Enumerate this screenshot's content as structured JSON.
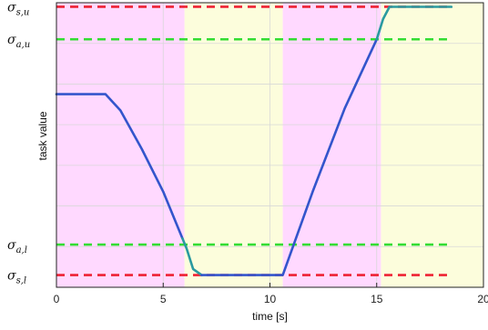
{
  "chart_data": {
    "type": "line",
    "xlabel": "time [s]",
    "ylabel": "task value",
    "xlim": [
      0,
      20
    ],
    "ylim": [
      0,
      7
    ],
    "x_ticks": [
      0,
      5,
      10,
      15,
      20
    ],
    "x_tick_labels": [
      "0",
      "5",
      "10",
      "15",
      "20"
    ],
    "y_gridlines": [
      1,
      2,
      3,
      4,
      5,
      6
    ],
    "grid": true,
    "background_bands": [
      {
        "x_from": 0,
        "x_to": 6.0,
        "color": "#ffd9ff"
      },
      {
        "x_from": 6.0,
        "x_to": 10.6,
        "color": "#fcfddc"
      },
      {
        "x_from": 10.6,
        "x_to": 15.2,
        "color": "#ffd9ff"
      },
      {
        "x_from": 15.2,
        "x_to": 20,
        "color": "#fcfddc"
      }
    ],
    "thresholds": [
      {
        "label_main": "σ",
        "label_sub": "s,u",
        "value": 6.9,
        "color": "#ee2233",
        "style": "dashed"
      },
      {
        "label_main": "σ",
        "label_sub": "a,u",
        "value": 6.1,
        "color": "#33dd33",
        "style": "dashed"
      },
      {
        "label_main": "σ",
        "label_sub": "a,l",
        "value": 1.05,
        "color": "#33dd33",
        "style": "dashed"
      },
      {
        "label_main": "σ",
        "label_sub": "s,l",
        "value": 0.3,
        "color": "#ee2233",
        "style": "dashed"
      }
    ],
    "series": [
      {
        "color": "#3355cc",
        "x": [
          0,
          2.3,
          3.0,
          4.0,
          5.0,
          5.9
        ],
        "y": [
          4.75,
          4.75,
          4.35,
          3.4,
          2.35,
          1.2
        ]
      },
      {
        "color": "#2a9aa0",
        "x": [
          5.9,
          6.1,
          6.4,
          6.8
        ],
        "y": [
          1.2,
          0.95,
          0.45,
          0.3
        ]
      },
      {
        "color": "#3355cc",
        "x": [
          6.8,
          10.6,
          12.0,
          13.5,
          15.0
        ],
        "y": [
          0.3,
          0.3,
          2.35,
          4.4,
          6.1
        ]
      },
      {
        "color": "#2a9aa0",
        "x": [
          15.0,
          15.3,
          15.6,
          16.0,
          18.5
        ],
        "y": [
          6.1,
          6.6,
          6.9,
          6.9,
          6.9
        ]
      }
    ]
  }
}
